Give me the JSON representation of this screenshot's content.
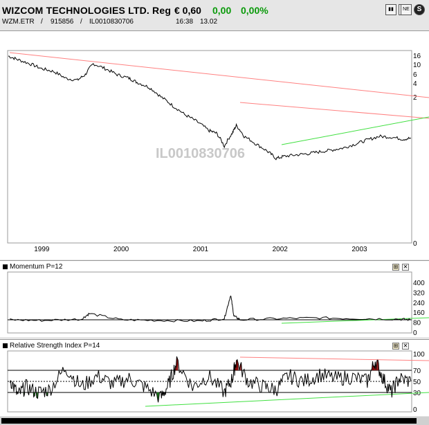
{
  "header": {
    "title": "WIZCOM TECHNOLOGIES LTD. Reg",
    "price": "€ 0,60",
    "change": "0,00",
    "change_pct": "0,00%",
    "symbol": "WZM.ETR",
    "sep1": "/",
    "wkn": "915856",
    "sep2": "/",
    "isin": "IL0010830706",
    "time": "16:38",
    "date": "13.02",
    "buttons": [
      "chart-icon",
      "grid-icon",
      "news-icon",
      "s-icon"
    ]
  },
  "watermark": "IL0010830706",
  "colors": {
    "price_line": "#000000",
    "resistance": "#ff8080",
    "support": "#40e040",
    "oversold_fill": "#1a7a1a",
    "overbought_fill": "#800000"
  },
  "chart_data": [
    {
      "type": "line",
      "name": "price",
      "y_scale": "log",
      "y_ticks": [
        "16",
        "10",
        "6",
        "4",
        "2",
        "0"
      ],
      "x_ticks": [
        "1999",
        "2000",
        "2001",
        "2002",
        "2003"
      ],
      "x": [
        1998.58,
        1998.7,
        1998.85,
        1999.0,
        1999.15,
        1999.3,
        1999.45,
        1999.55,
        1999.65,
        1999.8,
        1999.95,
        2000.1,
        2000.2,
        2000.35,
        2000.5,
        2000.65,
        2000.8,
        2000.95,
        2001.1,
        2001.2,
        2001.3,
        2001.4,
        2001.45,
        2001.55,
        2001.7,
        2001.85,
        2001.95,
        2002.05,
        2002.2,
        2002.35,
        2002.5,
        2002.65,
        2002.8,
        2002.95,
        2003.1,
        2003.25,
        2003.4,
        2003.55,
        2003.65
      ],
      "y": [
        16,
        14,
        12,
        10,
        9,
        7,
        6.5,
        8,
        12,
        10,
        8,
        7,
        6,
        5,
        3.5,
        2.5,
        1.8,
        1.4,
        1.0,
        0.9,
        0.55,
        0.9,
        1.2,
        0.8,
        0.6,
        0.45,
        0.35,
        0.38,
        0.4,
        0.42,
        0.45,
        0.48,
        0.52,
        0.6,
        0.7,
        0.8,
        0.78,
        0.72,
        0.75
      ]
    },
    {
      "type": "line",
      "name": "Momentum P=12",
      "label": "Momentum P=12",
      "y_ticks": [
        "400",
        "320",
        "240",
        "160",
        "80",
        "0"
      ],
      "x": [
        1998.6,
        1999.0,
        1999.5,
        1999.6,
        2000.0,
        2000.5,
        2001.0,
        2001.3,
        2001.38,
        2001.42,
        2001.5,
        2002.0,
        2002.5,
        2003.0,
        2003.5,
        2003.65
      ],
      "y": [
        100,
        95,
        105,
        150,
        100,
        95,
        90,
        110,
        300,
        130,
        100,
        110,
        115,
        110,
        105,
        100
      ]
    },
    {
      "type": "line",
      "name": "Relative Strength Index P=14",
      "label": "Relative Strength Index P=14",
      "y_ticks": [
        "100",
        "70",
        "50",
        "30",
        "0"
      ],
      "x": [
        1998.6,
        1998.7,
        1998.8,
        1998.95,
        1999.1,
        1999.3,
        1999.5,
        1999.7,
        1999.9,
        2000.1,
        2000.3,
        2000.5,
        2000.6,
        2000.7,
        2000.9,
        2001.1,
        2001.3,
        2001.4,
        2001.45,
        2001.6,
        2001.8,
        2001.95,
        2002.1,
        2002.3,
        2002.5,
        2002.7,
        2002.9,
        2003.1,
        2003.2,
        2003.3,
        2003.4,
        2003.5,
        2003.65
      ],
      "y": [
        55,
        25,
        40,
        30,
        35,
        75,
        40,
        60,
        45,
        55,
        40,
        20,
        45,
        85,
        40,
        60,
        30,
        55,
        88,
        50,
        40,
        35,
        60,
        50,
        62,
        55,
        58,
        50,
        88,
        55,
        30,
        55,
        50
      ]
    }
  ]
}
